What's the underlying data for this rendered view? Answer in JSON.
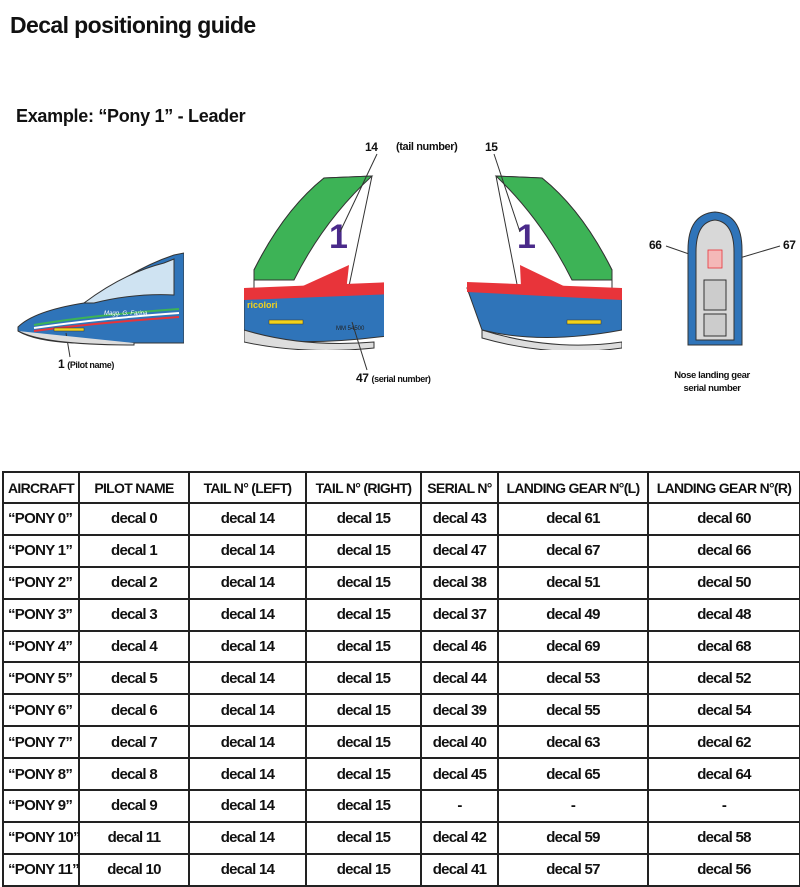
{
  "page": {
    "title": "Decal positioning guide",
    "example_heading": "Example: “Pony 1” - Leader"
  },
  "callouts": {
    "tail_left_number": "14",
    "tail_label": "(tail number)",
    "tail_right_number": "15",
    "pilot_number": "1",
    "pilot_label": "(Pilot name)",
    "serial_number": "47",
    "serial_label": "(serial number)",
    "gear_left": "66",
    "gear_right": "67",
    "gear_caption_line1": "Nose landing gear",
    "gear_caption_line2": "serial number"
  },
  "illustration_lettering": {
    "fin_number": "1",
    "fuselage_text": "ricolori",
    "serial_plate": "MM 54500",
    "pilot_script": "Magg. G. Farina"
  },
  "colors": {
    "green": "#3db356",
    "red": "#e8343a",
    "blue": "#2f74b9",
    "purple": "#4a2a8a",
    "yellow": "#f2d21c"
  },
  "table": {
    "headers": [
      "AIRCRAFT",
      "PILOT NAME",
      "TAIL N° (LEFT)",
      "TAIL N° (RIGHT)",
      "SERIAL N°",
      "LANDING GEAR N°(L)",
      "LANDING GEAR N°(R)"
    ],
    "rows": [
      [
        "“PONY 0”",
        "decal 0",
        "decal 14",
        "decal 15",
        "decal 43",
        "decal 61",
        "decal 60"
      ],
      [
        "“PONY 1”",
        "decal 1",
        "decal 14",
        "decal 15",
        "decal 47",
        "decal 67",
        "decal 66"
      ],
      [
        "“PONY 2”",
        "decal 2",
        "decal 14",
        "decal 15",
        "decal 38",
        "decal 51",
        "decal 50"
      ],
      [
        "“PONY 3”",
        "decal 3",
        "decal 14",
        "decal 15",
        "decal 37",
        "decal 49",
        "decal 48"
      ],
      [
        "“PONY 4”",
        "decal 4",
        "decal 14",
        "decal 15",
        "decal 46",
        "decal 69",
        "decal 68"
      ],
      [
        "“PONY 5”",
        "decal 5",
        "decal 14",
        "decal 15",
        "decal 44",
        "decal 53",
        "decal 52"
      ],
      [
        "“PONY 6”",
        "decal 6",
        "decal 14",
        "decal 15",
        "decal 39",
        "decal 55",
        "decal 54"
      ],
      [
        "“PONY 7”",
        "decal 7",
        "decal 14",
        "decal 15",
        "decal 40",
        "decal 63",
        "decal 62"
      ],
      [
        "“PONY 8”",
        "decal 8",
        "decal 14",
        "decal 15",
        "decal 45",
        "decal 65",
        "decal 64"
      ],
      [
        "“PONY 9”",
        "decal 9",
        "decal 14",
        "decal 15",
        "-",
        "-",
        "-"
      ],
      [
        "“PONY 10”",
        "decal 11",
        "decal 14",
        "decal 15",
        "decal 42",
        "decal 59",
        "decal 58"
      ],
      [
        "“PONY 11”",
        "decal 10",
        "decal 14",
        "decal 15",
        "decal 41",
        "decal 57",
        "decal 56"
      ]
    ]
  }
}
